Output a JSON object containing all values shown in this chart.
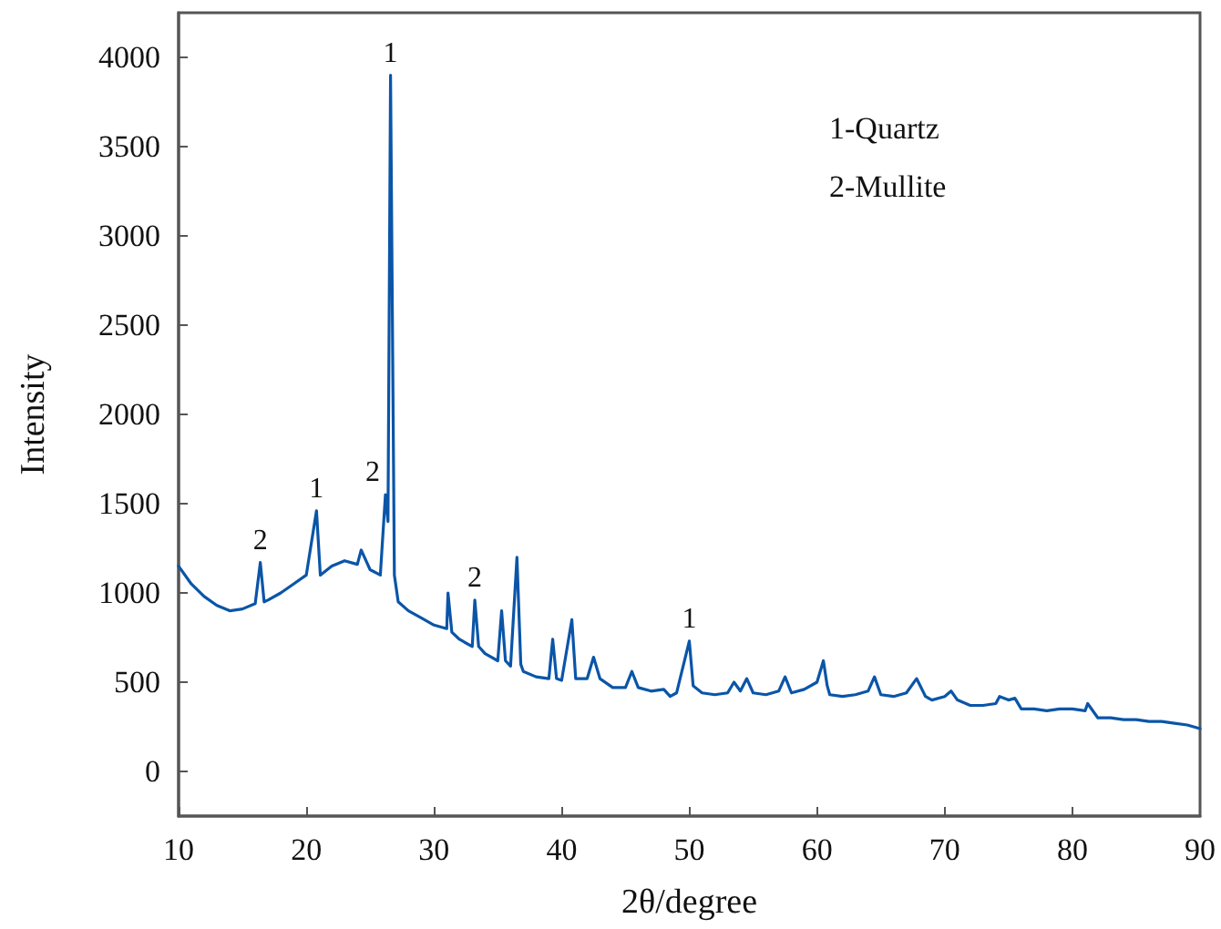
{
  "chart_data": {
    "type": "line",
    "xlabel": "2θ/degree",
    "ylabel": "Intensity",
    "xlim": [
      10,
      90
    ],
    "xticks": [
      10,
      20,
      30,
      40,
      50,
      60,
      70,
      80,
      90
    ],
    "ylim": [
      -250,
      4250
    ],
    "yticks": [
      0,
      500,
      1000,
      1500,
      2000,
      2500,
      3000,
      3500,
      4000
    ],
    "grid": false,
    "marker": "none",
    "line_style": "solid",
    "series": [
      {
        "color": "#0a55a8",
        "x": [
          10,
          11,
          12,
          13,
          14,
          15,
          16,
          16.4,
          16.7,
          17,
          18,
          19,
          20,
          20.8,
          21.1,
          22,
          23,
          24,
          24.3,
          25,
          25.8,
          26.2,
          26.4,
          26.6,
          26.9,
          27.2,
          28,
          29,
          30,
          31,
          31.1,
          31.4,
          32,
          33,
          33.2,
          33.5,
          34,
          35,
          35.3,
          35.6,
          36,
          36.5,
          36.8,
          37,
          38,
          39,
          39.3,
          39.6,
          40,
          40.8,
          41.1,
          42,
          42.5,
          43,
          44,
          45,
          45.5,
          46,
          47,
          48,
          48.5,
          49,
          50,
          50.3,
          51,
          52,
          53,
          53.5,
          54,
          54.5,
          55,
          56,
          57,
          57.5,
          58,
          59,
          60,
          60.5,
          60.8,
          61,
          62,
          63,
          64,
          64.5,
          65,
          66,
          67,
          67.8,
          68.5,
          69,
          70,
          70.5,
          71,
          72,
          73,
          74,
          74.3,
          75,
          75.5,
          76,
          77,
          78,
          79,
          80,
          81,
          81.2,
          82,
          83,
          84,
          85,
          86,
          87,
          88,
          89,
          90
        ],
        "values": [
          1150,
          1050,
          980,
          930,
          900,
          910,
          940,
          1170,
          950,
          960,
          1000,
          1050,
          1100,
          1460,
          1100,
          1150,
          1180,
          1160,
          1240,
          1130,
          1100,
          1550,
          1400,
          3900,
          1100,
          950,
          900,
          860,
          820,
          800,
          1000,
          780,
          740,
          700,
          960,
          700,
          660,
          620,
          900,
          620,
          590,
          1200,
          600,
          560,
          530,
          520,
          740,
          520,
          510,
          850,
          520,
          520,
          640,
          520,
          470,
          470,
          560,
          470,
          450,
          460,
          420,
          440,
          730,
          480,
          440,
          430,
          440,
          500,
          450,
          520,
          440,
          430,
          450,
          530,
          440,
          460,
          500,
          620,
          480,
          430,
          420,
          430,
          450,
          530,
          430,
          420,
          440,
          520,
          420,
          400,
          420,
          450,
          400,
          370,
          370,
          380,
          420,
          400,
          410,
          350,
          350,
          340,
          350,
          350,
          340,
          380,
          300,
          300,
          290,
          290,
          280,
          280,
          270,
          260,
          240
        ]
      }
    ],
    "annotations": [
      {
        "text": "2",
        "x": 16.4,
        "y": 1170
      },
      {
        "text": "1",
        "x": 20.8,
        "y": 1460
      },
      {
        "text": "2",
        "x": 26.2,
        "y": 1550
      },
      {
        "text": "1",
        "x": 26.6,
        "y": 3900
      },
      {
        "text": "2",
        "x": 33.2,
        "y": 960
      },
      {
        "text": "1",
        "x": 50,
        "y": 730
      },
      "1-Quartz",
      "2-Mullite"
    ]
  }
}
